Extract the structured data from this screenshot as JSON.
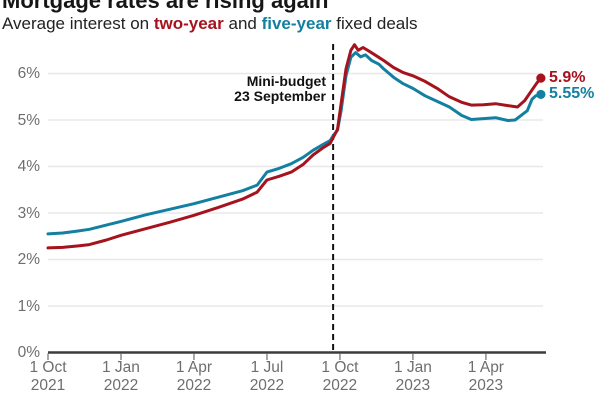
{
  "header": {
    "title": "Mortgage rates are rising again",
    "subtitle_prefix": "Average interest on ",
    "subtitle_two_year": "two-year",
    "subtitle_and": " and ",
    "subtitle_five_year": "five-year",
    "subtitle_suffix": " fixed deals"
  },
  "colors": {
    "two_year": "#a5131e",
    "five_year": "#1380a1",
    "grid": "#e8e8e8",
    "axis": "#3c3c3c",
    "tick": "#8a8a8a",
    "dashed_line": "#111111",
    "axis_label": "#6e6e6e"
  },
  "chart_data": {
    "type": "line",
    "title": "Mortgage rates are rising again",
    "subtitle": "Average interest on two-year and five-year fixed deals",
    "xlabel": "",
    "ylabel": "",
    "ylim": [
      0,
      6.9
    ],
    "grid": "horizontal",
    "legend_position": "inline-subtitle",
    "x_range_months": [
      0,
      20.45
    ],
    "y_ticks": [
      {
        "v": 0,
        "label": "0%"
      },
      {
        "v": 1,
        "label": "1%"
      },
      {
        "v": 2,
        "label": "2%"
      },
      {
        "v": 3,
        "label": "3%"
      },
      {
        "v": 4,
        "label": "4%"
      },
      {
        "v": 5,
        "label": "5%"
      },
      {
        "v": 6,
        "label": "6%"
      }
    ],
    "x_ticks": [
      {
        "t": 0,
        "line1": "1 Oct",
        "line2": "2021"
      },
      {
        "t": 3,
        "line1": "1 Jan",
        "line2": "2022"
      },
      {
        "t": 6,
        "line1": "1 Apr",
        "line2": "2022"
      },
      {
        "t": 9,
        "line1": "1 Jul",
        "line2": "2022"
      },
      {
        "t": 12,
        "line1": "1 Oct",
        "line2": "2022"
      },
      {
        "t": 15,
        "line1": "1 Jan",
        "line2": "2023"
      },
      {
        "t": 18,
        "line1": "1 Apr",
        "line2": "2023"
      }
    ],
    "annotation": {
      "line1": "Mini-budget",
      "line2": "23 September",
      "t_event": 11.72
    },
    "series": [
      {
        "name": "two-year",
        "color_key": "two_year",
        "end_label": "5.9%",
        "end_value": 5.9,
        "points": [
          [
            0,
            2.25
          ],
          [
            0.6,
            2.26
          ],
          [
            1.2,
            2.29
          ],
          [
            1.7,
            2.32
          ],
          [
            2.4,
            2.42
          ],
          [
            3,
            2.52
          ],
          [
            4,
            2.66
          ],
          [
            5,
            2.8
          ],
          [
            6,
            2.95
          ],
          [
            7,
            3.12
          ],
          [
            8,
            3.3
          ],
          [
            8.6,
            3.45
          ],
          [
            9,
            3.71
          ],
          [
            9.5,
            3.79
          ],
          [
            10,
            3.88
          ],
          [
            10.5,
            4.05
          ],
          [
            10.9,
            4.25
          ],
          [
            11.3,
            4.4
          ],
          [
            11.6,
            4.5
          ],
          [
            11.72,
            4.62
          ],
          [
            11.9,
            4.8
          ],
          [
            12.05,
            5.35
          ],
          [
            12.25,
            6.1
          ],
          [
            12.45,
            6.5
          ],
          [
            12.6,
            6.62
          ],
          [
            12.75,
            6.5
          ],
          [
            12.95,
            6.56
          ],
          [
            13.2,
            6.48
          ],
          [
            13.5,
            6.38
          ],
          [
            13.8,
            6.28
          ],
          [
            14.2,
            6.13
          ],
          [
            14.6,
            6.02
          ],
          [
            15,
            5.95
          ],
          [
            15.5,
            5.83
          ],
          [
            16,
            5.68
          ],
          [
            16.5,
            5.5
          ],
          [
            17,
            5.38
          ],
          [
            17.4,
            5.32
          ],
          [
            17.9,
            5.33
          ],
          [
            18.4,
            5.35
          ],
          [
            18.9,
            5.31
          ],
          [
            19.3,
            5.28
          ],
          [
            19.6,
            5.42
          ],
          [
            19.9,
            5.65
          ],
          [
            20.1,
            5.8
          ],
          [
            20.26,
            5.9
          ]
        ]
      },
      {
        "name": "five-year",
        "color_key": "five_year",
        "end_label": "5.55%",
        "end_value": 5.55,
        "points": [
          [
            0,
            2.55
          ],
          [
            0.6,
            2.57
          ],
          [
            1.2,
            2.61
          ],
          [
            1.7,
            2.65
          ],
          [
            2.4,
            2.74
          ],
          [
            3,
            2.82
          ],
          [
            4,
            2.96
          ],
          [
            5,
            3.08
          ],
          [
            6,
            3.2
          ],
          [
            7,
            3.34
          ],
          [
            8,
            3.48
          ],
          [
            8.6,
            3.6
          ],
          [
            9,
            3.88
          ],
          [
            9.5,
            3.96
          ],
          [
            10,
            4.06
          ],
          [
            10.5,
            4.2
          ],
          [
            10.9,
            4.35
          ],
          [
            11.3,
            4.47
          ],
          [
            11.6,
            4.56
          ],
          [
            11.72,
            4.66
          ],
          [
            11.9,
            4.78
          ],
          [
            12.05,
            5.2
          ],
          [
            12.25,
            5.95
          ],
          [
            12.45,
            6.35
          ],
          [
            12.65,
            6.45
          ],
          [
            12.85,
            6.36
          ],
          [
            13.05,
            6.4
          ],
          [
            13.3,
            6.28
          ],
          [
            13.6,
            6.2
          ],
          [
            13.8,
            6.1
          ],
          [
            14.2,
            5.92
          ],
          [
            14.6,
            5.78
          ],
          [
            15,
            5.68
          ],
          [
            15.5,
            5.52
          ],
          [
            16,
            5.4
          ],
          [
            16.5,
            5.28
          ],
          [
            17,
            5.1
          ],
          [
            17.4,
            5.01
          ],
          [
            17.9,
            5.03
          ],
          [
            18.4,
            5.05
          ],
          [
            18.9,
            4.99
          ],
          [
            19.2,
            5.0
          ],
          [
            19.5,
            5.12
          ],
          [
            19.7,
            5.2
          ],
          [
            19.9,
            5.45
          ],
          [
            20.05,
            5.52
          ],
          [
            20.26,
            5.55
          ]
        ]
      }
    ]
  }
}
